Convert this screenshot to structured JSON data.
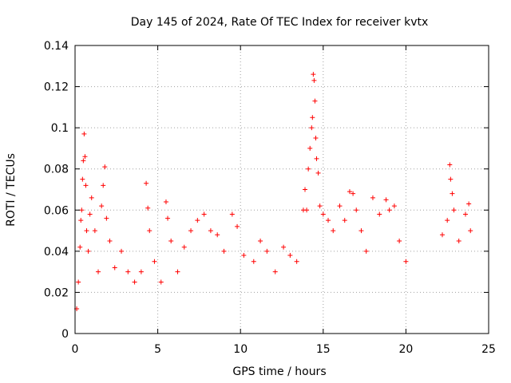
{
  "chart_data": {
    "type": "scatter",
    "title": "Day 145 of 2024, Rate Of TEC Index for receiver kvtx",
    "xlabel": "GPS time / hours",
    "ylabel": "ROTI / TECUs",
    "xlim": [
      0,
      25
    ],
    "ylim": [
      0,
      0.14
    ],
    "xticks": [
      "0",
      "5",
      "10",
      "15",
      "20",
      "25"
    ],
    "yticks": [
      "0",
      "0.02",
      "0.04",
      "0.06",
      "0.08",
      "0.1",
      "0.12",
      "0.14"
    ],
    "grid": true,
    "marker": "plus",
    "color": "#ff0000",
    "series": [
      {
        "points": [
          [
            0.1,
            0.012
          ],
          [
            0.2,
            0.025
          ],
          [
            0.3,
            0.042
          ],
          [
            0.35,
            0.055
          ],
          [
            0.4,
            0.06
          ],
          [
            0.45,
            0.075
          ],
          [
            0.5,
            0.084
          ],
          [
            0.55,
            0.097
          ],
          [
            0.6,
            0.086
          ],
          [
            0.65,
            0.072
          ],
          [
            0.7,
            0.05
          ],
          [
            0.8,
            0.04
          ],
          [
            0.9,
            0.058
          ],
          [
            1.0,
            0.066
          ],
          [
            1.2,
            0.05
          ],
          [
            1.4,
            0.03
          ],
          [
            1.6,
            0.062
          ],
          [
            1.7,
            0.072
          ],
          [
            1.8,
            0.081
          ],
          [
            1.9,
            0.056
          ],
          [
            2.1,
            0.045
          ],
          [
            2.4,
            0.032
          ],
          [
            2.8,
            0.04
          ],
          [
            3.2,
            0.03
          ],
          [
            3.6,
            0.025
          ],
          [
            4.0,
            0.03
          ],
          [
            4.3,
            0.073
          ],
          [
            4.4,
            0.061
          ],
          [
            4.5,
            0.05
          ],
          [
            4.8,
            0.035
          ],
          [
            5.2,
            0.025
          ],
          [
            5.5,
            0.064
          ],
          [
            5.6,
            0.056
          ],
          [
            5.8,
            0.045
          ],
          [
            6.2,
            0.03
          ],
          [
            6.6,
            0.042
          ],
          [
            7.0,
            0.05
          ],
          [
            7.4,
            0.055
          ],
          [
            7.8,
            0.058
          ],
          [
            8.2,
            0.05
          ],
          [
            8.6,
            0.048
          ],
          [
            9.0,
            0.04
          ],
          [
            9.5,
            0.058
          ],
          [
            9.8,
            0.052
          ],
          [
            10.2,
            0.038
          ],
          [
            10.8,
            0.035
          ],
          [
            11.2,
            0.045
          ],
          [
            11.6,
            0.04
          ],
          [
            12.1,
            0.03
          ],
          [
            12.6,
            0.042
          ],
          [
            13.0,
            0.038
          ],
          [
            13.4,
            0.035
          ],
          [
            13.8,
            0.06
          ],
          [
            13.9,
            0.07
          ],
          [
            14.0,
            0.06
          ],
          [
            14.1,
            0.08
          ],
          [
            14.2,
            0.09
          ],
          [
            14.3,
            0.1
          ],
          [
            14.35,
            0.105
          ],
          [
            14.4,
            0.126
          ],
          [
            14.45,
            0.123
          ],
          [
            14.5,
            0.113
          ],
          [
            14.55,
            0.095
          ],
          [
            14.6,
            0.085
          ],
          [
            14.7,
            0.078
          ],
          [
            14.8,
            0.062
          ],
          [
            15.0,
            0.058
          ],
          [
            15.3,
            0.055
          ],
          [
            15.6,
            0.05
          ],
          [
            16.0,
            0.062
          ],
          [
            16.3,
            0.055
          ],
          [
            16.6,
            0.069
          ],
          [
            16.8,
            0.068
          ],
          [
            17.0,
            0.06
          ],
          [
            17.3,
            0.05
          ],
          [
            17.6,
            0.04
          ],
          [
            18.0,
            0.066
          ],
          [
            18.4,
            0.058
          ],
          [
            18.8,
            0.065
          ],
          [
            19.0,
            0.06
          ],
          [
            19.3,
            0.062
          ],
          [
            19.6,
            0.045
          ],
          [
            20.0,
            0.035
          ],
          [
            22.2,
            0.048
          ],
          [
            22.5,
            0.055
          ],
          [
            22.65,
            0.082
          ],
          [
            22.7,
            0.075
          ],
          [
            22.8,
            0.068
          ],
          [
            22.9,
            0.06
          ],
          [
            23.2,
            0.045
          ],
          [
            23.6,
            0.058
          ],
          [
            23.8,
            0.063
          ],
          [
            23.9,
            0.05
          ]
        ]
      }
    ]
  }
}
